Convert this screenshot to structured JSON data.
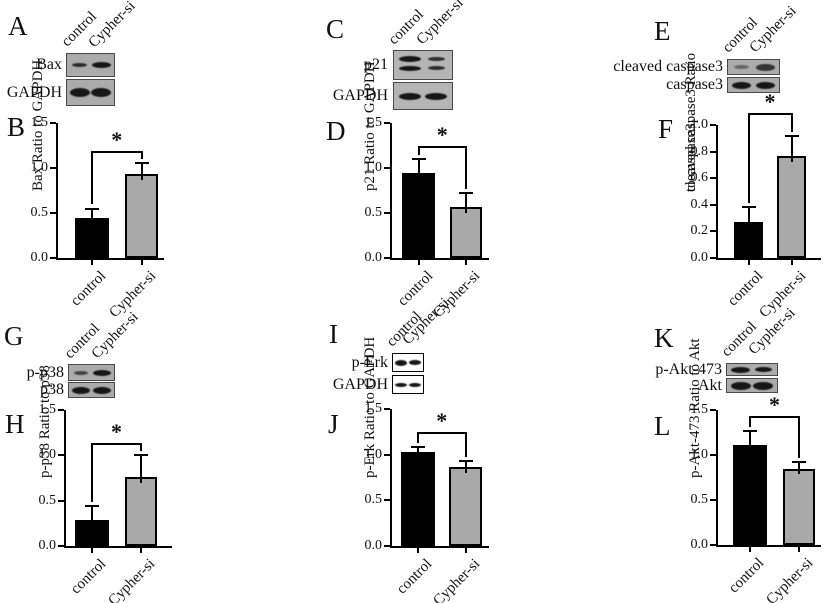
{
  "figure": {
    "groups": [
      {
        "blot": {
          "letter": "A",
          "lane_labels": [
            "control",
            "Cypher-si"
          ],
          "rows": [
            {
              "label": "Bax"
            },
            {
              "label": "GAPDH"
            }
          ]
        },
        "chart": {
          "letter": "B",
          "ylabel_lines": [
            "Bax Ratio to GAPDH"
          ],
          "ymax": 1.5,
          "yticks": [
            "0.0",
            "0.5",
            "1.0",
            "1.5"
          ],
          "categories": [
            "control",
            "Cypher-si"
          ],
          "values": [
            0.44,
            0.93
          ],
          "errors": [
            0.11,
            0.13
          ],
          "sig": "*"
        }
      },
      {
        "blot": {
          "letter": "C",
          "lane_labels": [
            "control",
            "Cypher-si"
          ],
          "rows": [
            {
              "label": "p21"
            },
            {
              "label": "GAPDH"
            }
          ]
        },
        "chart": {
          "letter": "D",
          "ylabel_lines": [
            "p21 Ratio to GAPDH"
          ],
          "ymax": 1.5,
          "yticks": [
            "0.0",
            "0.5",
            "1.0",
            "1.5"
          ],
          "categories": [
            "control",
            "Cypher-si"
          ],
          "values": [
            0.94,
            0.57
          ],
          "errors": [
            0.16,
            0.15
          ],
          "sig": "*"
        }
      },
      {
        "blot": {
          "letter": "E",
          "lane_labels": [
            "control",
            "Cypher-si"
          ],
          "rows": [
            {
              "label": "cleaved caspase3"
            },
            {
              "label": "caspase3"
            }
          ]
        },
        "chart": {
          "letter": "F",
          "ylabel_lines": [
            "cleaved caspase3 Ratio",
            "to caspase3"
          ],
          "ymax": 1.0,
          "yticks": [
            "0.0",
            "0.2",
            "0.4",
            "0.6",
            "0.8",
            "1.0"
          ],
          "categories": [
            "control",
            "Cypher-si"
          ],
          "values": [
            0.27,
            0.77
          ],
          "errors": [
            0.11,
            0.15
          ],
          "sig": "*"
        }
      },
      {
        "blot": {
          "letter": "G",
          "lane_labels": [
            "control",
            "Cypher-si"
          ],
          "rows": [
            {
              "label": "p-p38"
            },
            {
              "label": "p38"
            }
          ]
        },
        "chart": {
          "letter": "H",
          "ylabel_lines": [
            "p-p38 Ratio to p38"
          ],
          "ymax": 1.5,
          "yticks": [
            "0.0",
            "0.5",
            "1.0",
            "1.5"
          ],
          "categories": [
            "control",
            "Cypher-si"
          ],
          "values": [
            0.29,
            0.76
          ],
          "errors": [
            0.15,
            0.24
          ],
          "sig": "*"
        }
      },
      {
        "blot": {
          "letter": "I",
          "lane_labels": [
            "control",
            "Cypher-si"
          ],
          "rows": [
            {
              "label": "p-Erk"
            },
            {
              "label": "GAPDH"
            }
          ]
        },
        "chart": {
          "letter": "J",
          "ylabel_lines": [
            "p-Erk Ratio to GAPDH"
          ],
          "ymax": 1.5,
          "yticks": [
            "0.0",
            "0.5",
            "1.0",
            "1.5"
          ],
          "categories": [
            "control",
            "Cypher-si"
          ],
          "values": [
            1.03,
            0.86
          ],
          "errors": [
            0.05,
            0.07
          ],
          "sig": "*"
        }
      },
      {
        "blot": {
          "letter": "K",
          "lane_labels": [
            "control",
            "Cypher-si"
          ],
          "rows": [
            {
              "label": "p-Akt-473"
            },
            {
              "label": "Akt"
            }
          ]
        },
        "chart": {
          "letter": "L",
          "ylabel_lines": [
            "p-Akt-473 Ratio to Akt"
          ],
          "ymax": 1.5,
          "yticks": [
            "0.0",
            "0.5",
            "1.0",
            "1.5"
          ],
          "categories": [
            "control",
            "Cypher-si"
          ],
          "values": [
            1.11,
            0.85
          ],
          "errors": [
            0.16,
            0.07
          ],
          "sig": "*"
        }
      }
    ],
    "colors": {
      "control_bar": "#000000",
      "cypher_si_bar": "#a9a9a9",
      "axis": "#000000",
      "blot_background": "#ababab",
      "blot_background_panel_I": "#ffffff",
      "band": "#161616",
      "text": "#111111"
    }
  },
  "chart_data": [
    {
      "type": "bar",
      "panel": "B",
      "categories": [
        "control",
        "Cypher-si"
      ],
      "values": [
        0.44,
        0.93
      ],
      "errors": [
        0.11,
        0.13
      ],
      "ylabel": "Bax Ratio to GAPDH",
      "ylim": [
        0,
        1.5
      ],
      "yticks": [
        0,
        0.5,
        1.0,
        1.5
      ],
      "significance": "*",
      "bar_colors": [
        "#000000",
        "#a9a9a9"
      ],
      "legend": "none",
      "grid": false
    },
    {
      "type": "bar",
      "panel": "D",
      "categories": [
        "control",
        "Cypher-si"
      ],
      "values": [
        0.94,
        0.57
      ],
      "errors": [
        0.16,
        0.15
      ],
      "ylabel": "p21 Ratio to GAPDH",
      "ylim": [
        0,
        1.5
      ],
      "yticks": [
        0,
        0.5,
        1.0,
        1.5
      ],
      "significance": "*",
      "bar_colors": [
        "#000000",
        "#a9a9a9"
      ],
      "legend": "none",
      "grid": false
    },
    {
      "type": "bar",
      "panel": "F",
      "categories": [
        "control",
        "Cypher-si"
      ],
      "values": [
        0.27,
        0.77
      ],
      "errors": [
        0.11,
        0.15
      ],
      "ylabel": "cleaved caspase3 Ratio to caspase3",
      "ylim": [
        0,
        1.0
      ],
      "yticks": [
        0,
        0.2,
        0.4,
        0.6,
        0.8,
        1.0
      ],
      "significance": "*",
      "bar_colors": [
        "#000000",
        "#a9a9a9"
      ],
      "legend": "none",
      "grid": false
    },
    {
      "type": "bar",
      "panel": "H",
      "categories": [
        "control",
        "Cypher-si"
      ],
      "values": [
        0.29,
        0.76
      ],
      "errors": [
        0.15,
        0.24
      ],
      "ylabel": "p-p38 Ratio to p38",
      "ylim": [
        0,
        1.5
      ],
      "yticks": [
        0,
        0.5,
        1.0,
        1.5
      ],
      "significance": "*",
      "bar_colors": [
        "#000000",
        "#a9a9a9"
      ],
      "legend": "none",
      "grid": false
    },
    {
      "type": "bar",
      "panel": "J",
      "categories": [
        "control",
        "Cypher-si"
      ],
      "values": [
        1.03,
        0.86
      ],
      "errors": [
        0.05,
        0.07
      ],
      "ylabel": "p-Erk Ratio to GAPDH",
      "ylim": [
        0,
        1.5
      ],
      "yticks": [
        0,
        0.5,
        1.0,
        1.5
      ],
      "significance": "*",
      "bar_colors": [
        "#000000",
        "#a9a9a9"
      ],
      "legend": "none",
      "grid": false
    },
    {
      "type": "bar",
      "panel": "L",
      "categories": [
        "control",
        "Cypher-si"
      ],
      "values": [
        1.11,
        0.85
      ],
      "errors": [
        0.16,
        0.07
      ],
      "ylabel": "p-Akt-473 Ratio to Akt",
      "ylim": [
        0,
        1.5
      ],
      "yticks": [
        0,
        0.5,
        1.0,
        1.5
      ],
      "significance": "*",
      "bar_colors": [
        "#000000",
        "#a9a9a9"
      ],
      "legend": "none",
      "grid": false
    }
  ]
}
